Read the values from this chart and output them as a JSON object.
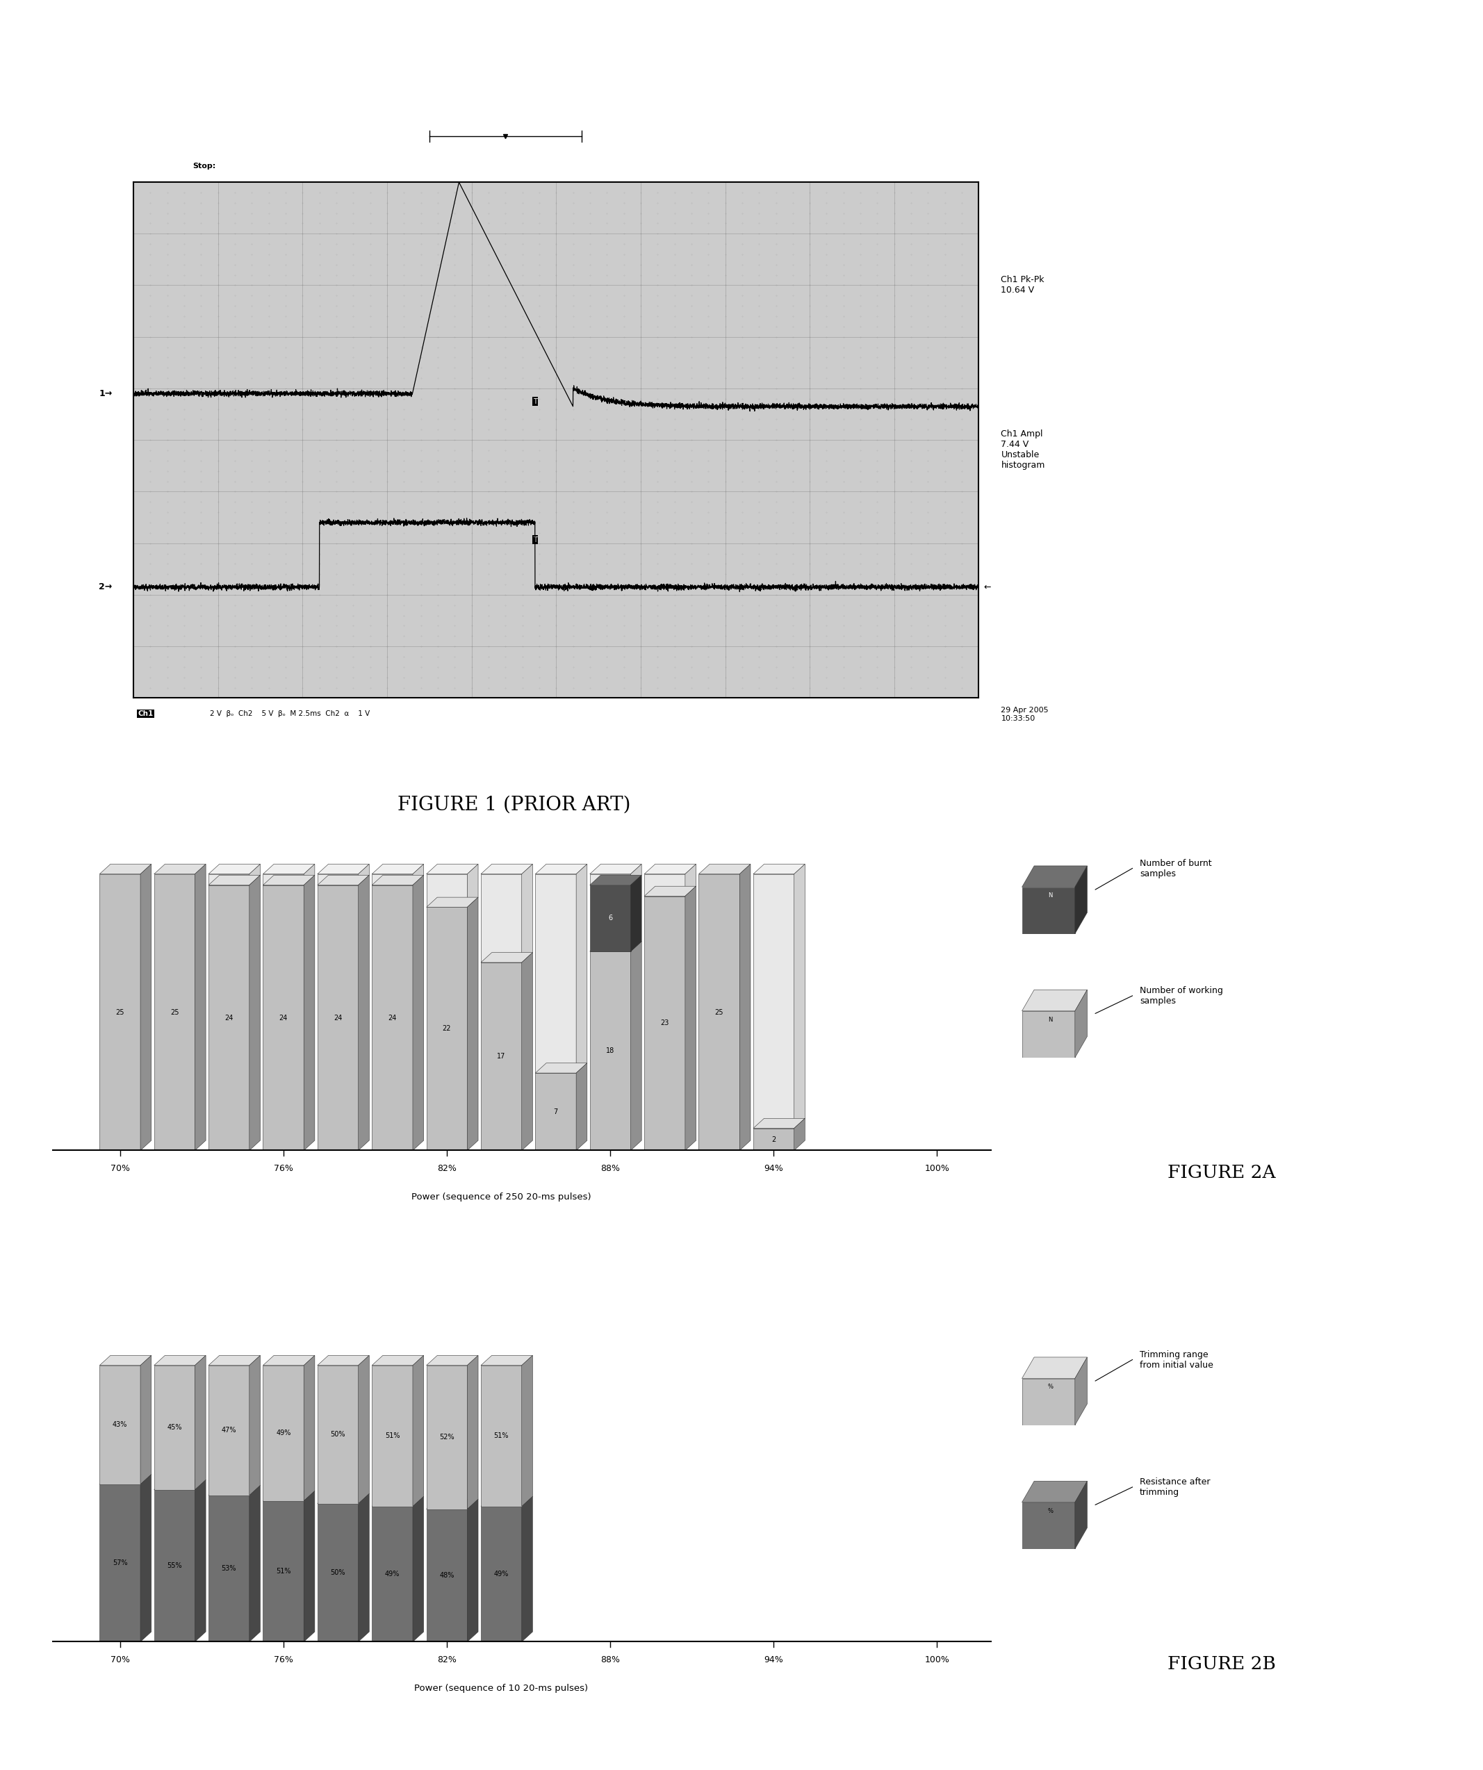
{
  "fig_width": 21.34,
  "fig_height": 25.47,
  "background_color": "#ffffff",
  "fig1_label": "FIGURE 1 (PRIOR ART)",
  "osc_bg_color": "#cccccc",
  "osc_grid_color": "#aaaaaa",
  "fig2a_positions": [
    70,
    72,
    74,
    76,
    78,
    80,
    82,
    84,
    86,
    88,
    90,
    92,
    94
  ],
  "fig2a_working": [
    25,
    25,
    24,
    24,
    24,
    24,
    22,
    17,
    7,
    18,
    23,
    25,
    2
  ],
  "fig2a_burnt": [
    0,
    0,
    0,
    0,
    0,
    0,
    0,
    0,
    0,
    6,
    0,
    0,
    0
  ],
  "fig2a_total": 25,
  "fig2a_tick_pos": [
    70,
    76,
    82,
    88,
    94,
    100
  ],
  "fig2a_tick_labels": [
    "70%",
    "76%",
    "82%",
    "88%",
    "94%",
    "100%"
  ],
  "fig2a_xlabel": "Power (sequence of 250 20-ms pulses)",
  "fig2a_label": "FIGURE 2A",
  "fig2a_legend_burnt": "Number of burnt\nsamples",
  "fig2a_legend_working": "Number of working\nsamples",
  "fig2b_positions": [
    70,
    72,
    74,
    76,
    78,
    80,
    82,
    84
  ],
  "fig2b_top_labels": [
    "43%",
    "45%",
    "47%",
    "49%",
    "50%",
    "51%",
    "52%",
    "51%"
  ],
  "fig2b_bot_labels": [
    "57%",
    "55%",
    "53%",
    "51%",
    "50%",
    "49%",
    "48%",
    "49%"
  ],
  "fig2b_top_vals": [
    43,
    45,
    47,
    49,
    50,
    51,
    52,
    51
  ],
  "fig2b_bot_vals": [
    57,
    55,
    53,
    51,
    50,
    49,
    48,
    49
  ],
  "fig2b_tick_pos": [
    70,
    76,
    82,
    88,
    94,
    100
  ],
  "fig2b_tick_labels": [
    "70%",
    "76%",
    "82%",
    "88%",
    "94%",
    "100%"
  ],
  "fig2b_xlabel": "Power (sequence of 10 20-ms pulses)",
  "fig2b_label": "FIGURE 2B",
  "fig2b_legend_trim": "Trimming range\nfrom initial value",
  "fig2b_legend_resist": "Resistance after\ntrimming",
  "bar_face_light": "#c0c0c0",
  "bar_top_light": "#e0e0e0",
  "bar_side_light": "#909090",
  "bar_face_dark": "#707070",
  "bar_top_dark": "#909090",
  "bar_side_dark": "#484848",
  "bar_face_burnt": "#505050",
  "bar_top_burnt": "#707070",
  "bar_side_burnt": "#303030"
}
